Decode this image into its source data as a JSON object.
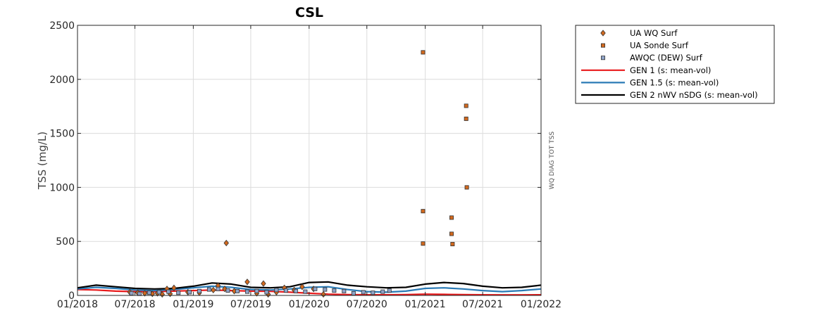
{
  "chart_data": {
    "type": "line",
    "title": "CSL",
    "ylabel": "TSS (mg/L)",
    "side_label": "WQ DIAG TOT TSS",
    "ylim": [
      0,
      2500
    ],
    "xlim": [
      "2018-01-01",
      "2022-01-01"
    ],
    "grid": true,
    "legend_position": "outside-right",
    "yticks": [
      {
        "value": 0,
        "label": "0"
      },
      {
        "value": 500,
        "label": "500"
      },
      {
        "value": 1000,
        "label": "1000"
      },
      {
        "value": 1500,
        "label": "1500"
      },
      {
        "value": 2000,
        "label": "2000"
      },
      {
        "value": 2500,
        "label": "2500"
      }
    ],
    "xticks": [
      {
        "date": "2018-01-01",
        "label": "01/2018"
      },
      {
        "date": "2018-07-01",
        "label": "07/2018"
      },
      {
        "date": "2019-01-01",
        "label": "01/2019"
      },
      {
        "date": "2019-07-01",
        "label": "07/2019"
      },
      {
        "date": "2020-01-01",
        "label": "01/2020"
      },
      {
        "date": "2020-07-01",
        "label": "07/2020"
      },
      {
        "date": "2021-01-01",
        "label": "01/2021"
      },
      {
        "date": "2021-07-01",
        "label": "07/2021"
      },
      {
        "date": "2022-01-01",
        "label": "01/2022"
      }
    ],
    "series": [
      {
        "name": "UA WQ Surf",
        "kind": "scatter",
        "marker": "diamond",
        "color": "#d2691e",
        "points": [
          {
            "x": "2018-06-15",
            "y": 30
          },
          {
            "x": "2018-07-10",
            "y": 25
          },
          {
            "x": "2018-08-01",
            "y": 20
          },
          {
            "x": "2018-08-25",
            "y": 15
          },
          {
            "x": "2018-09-10",
            "y": 20
          },
          {
            "x": "2018-09-25",
            "y": 10
          },
          {
            "x": "2018-10-10",
            "y": 60
          },
          {
            "x": "2018-10-20",
            "y": 15
          },
          {
            "x": "2018-11-01",
            "y": 70
          },
          {
            "x": "2018-12-15",
            "y": 30
          },
          {
            "x": "2019-01-20",
            "y": 25
          },
          {
            "x": "2019-03-05",
            "y": 50
          },
          {
            "x": "2019-03-20",
            "y": 90
          },
          {
            "x": "2019-04-10",
            "y": 60
          },
          {
            "x": "2019-04-15",
            "y": 485
          },
          {
            "x": "2019-05-10",
            "y": 40
          },
          {
            "x": "2019-06-20",
            "y": 125
          },
          {
            "x": "2019-07-20",
            "y": 20
          },
          {
            "x": "2019-08-10",
            "y": 110
          },
          {
            "x": "2019-08-25",
            "y": 10
          },
          {
            "x": "2019-09-20",
            "y": 30
          },
          {
            "x": "2019-10-15",
            "y": 70
          },
          {
            "x": "2019-11-15",
            "y": 50
          },
          {
            "x": "2019-12-10",
            "y": 80
          },
          {
            "x": "2020-01-15",
            "y": 60
          },
          {
            "x": "2020-02-15",
            "y": 10
          }
        ]
      },
      {
        "name": "UA Sonde Surf",
        "kind": "scatter",
        "marker": "square",
        "color": "#d2691e",
        "points": [
          {
            "x": "2020-12-25",
            "y": 2250
          },
          {
            "x": "2020-12-25",
            "y": 780
          },
          {
            "x": "2020-12-25",
            "y": 480
          },
          {
            "x": "2021-03-25",
            "y": 720
          },
          {
            "x": "2021-03-25",
            "y": 570
          },
          {
            "x": "2021-03-28",
            "y": 475
          },
          {
            "x": "2021-05-10",
            "y": 1755
          },
          {
            "x": "2021-05-10",
            "y": 1635
          },
          {
            "x": "2021-05-12",
            "y": 1000
          }
        ]
      },
      {
        "name": "AWQC (DEW) Surf",
        "kind": "scatter",
        "marker": "square",
        "color": "#8fa3c8",
        "points": [
          {
            "x": "2018-06-20",
            "y": 20
          },
          {
            "x": "2018-07-15",
            "y": 15
          },
          {
            "x": "2018-08-15",
            "y": 25
          },
          {
            "x": "2018-09-15",
            "y": 30
          },
          {
            "x": "2018-10-15",
            "y": 35
          },
          {
            "x": "2018-11-15",
            "y": 25
          },
          {
            "x": "2018-12-20",
            "y": 30
          },
          {
            "x": "2019-01-20",
            "y": 40
          },
          {
            "x": "2019-02-20",
            "y": 55
          },
          {
            "x": "2019-03-20",
            "y": 60
          },
          {
            "x": "2019-04-20",
            "y": 45
          },
          {
            "x": "2019-05-20",
            "y": 40
          },
          {
            "x": "2019-06-20",
            "y": 35
          },
          {
            "x": "2019-07-20",
            "y": 40
          },
          {
            "x": "2019-08-20",
            "y": 30
          },
          {
            "x": "2019-09-20",
            "y": 50
          },
          {
            "x": "2019-10-20",
            "y": 45
          },
          {
            "x": "2019-11-20",
            "y": 40
          },
          {
            "x": "2019-12-20",
            "y": 35
          },
          {
            "x": "2020-01-20",
            "y": 60
          },
          {
            "x": "2020-02-20",
            "y": 55
          },
          {
            "x": "2020-03-20",
            "y": 45
          },
          {
            "x": "2020-04-20",
            "y": 40
          },
          {
            "x": "2020-05-20",
            "y": 20
          },
          {
            "x": "2020-06-20",
            "y": 30
          },
          {
            "x": "2020-07-20",
            "y": 25
          },
          {
            "x": "2020-08-20",
            "y": 35
          },
          {
            "x": "2020-09-10",
            "y": 45
          }
        ]
      },
      {
        "name": "GEN 1 (s: mean-vol)",
        "kind": "line",
        "color": "#e8191b",
        "points": [
          {
            "x": "2018-01-01",
            "y": 55
          },
          {
            "x": "2018-03-01",
            "y": 50
          },
          {
            "x": "2018-05-01",
            "y": 40
          },
          {
            "x": "2018-07-01",
            "y": 35
          },
          {
            "x": "2018-09-01",
            "y": 35
          },
          {
            "x": "2018-11-01",
            "y": 40
          },
          {
            "x": "2019-01-01",
            "y": 45
          },
          {
            "x": "2019-03-01",
            "y": 50
          },
          {
            "x": "2019-05-01",
            "y": 45
          },
          {
            "x": "2019-07-01",
            "y": 40
          },
          {
            "x": "2019-09-01",
            "y": 38
          },
          {
            "x": "2019-11-01",
            "y": 30
          },
          {
            "x": "2020-01-01",
            "y": 20
          },
          {
            "x": "2020-03-01",
            "y": 12
          },
          {
            "x": "2020-05-01",
            "y": 8
          },
          {
            "x": "2020-07-01",
            "y": 6
          },
          {
            "x": "2020-09-01",
            "y": 6
          },
          {
            "x": "2020-11-01",
            "y": 8
          },
          {
            "x": "2021-01-01",
            "y": 12
          },
          {
            "x": "2021-03-01",
            "y": 10
          },
          {
            "x": "2021-05-01",
            "y": 8
          },
          {
            "x": "2021-07-01",
            "y": 6
          },
          {
            "x": "2021-09-01",
            "y": 5
          },
          {
            "x": "2021-11-01",
            "y": 5
          },
          {
            "x": "2022-01-01",
            "y": 6
          }
        ]
      },
      {
        "name": "GEN 1.5 (s: mean-vol)",
        "kind": "line",
        "color": "#2a7ab5",
        "points": [
          {
            "x": "2018-01-01",
            "y": 60
          },
          {
            "x": "2018-03-01",
            "y": 75
          },
          {
            "x": "2018-05-01",
            "y": 65
          },
          {
            "x": "2018-07-01",
            "y": 50
          },
          {
            "x": "2018-09-01",
            "y": 45
          },
          {
            "x": "2018-11-01",
            "y": 55
          },
          {
            "x": "2019-01-01",
            "y": 70
          },
          {
            "x": "2019-03-01",
            "y": 85
          },
          {
            "x": "2019-05-01",
            "y": 75
          },
          {
            "x": "2019-07-01",
            "y": 55
          },
          {
            "x": "2019-09-01",
            "y": 50
          },
          {
            "x": "2019-11-01",
            "y": 60
          },
          {
            "x": "2020-01-01",
            "y": 75
          },
          {
            "x": "2020-03-01",
            "y": 80
          },
          {
            "x": "2020-05-01",
            "y": 55
          },
          {
            "x": "2020-07-01",
            "y": 35
          },
          {
            "x": "2020-09-01",
            "y": 30
          },
          {
            "x": "2020-11-01",
            "y": 40
          },
          {
            "x": "2021-01-01",
            "y": 65
          },
          {
            "x": "2021-03-01",
            "y": 70
          },
          {
            "x": "2021-05-01",
            "y": 60
          },
          {
            "x": "2021-07-01",
            "y": 45
          },
          {
            "x": "2021-09-01",
            "y": 35
          },
          {
            "x": "2021-11-01",
            "y": 45
          },
          {
            "x": "2022-01-01",
            "y": 60
          }
        ]
      },
      {
        "name": "GEN 2 nWV nSDG (s: mean-vol)",
        "kind": "line",
        "color": "#000000",
        "points": [
          {
            "x": "2018-01-01",
            "y": 70
          },
          {
            "x": "2018-03-01",
            "y": 95
          },
          {
            "x": "2018-05-01",
            "y": 80
          },
          {
            "x": "2018-07-01",
            "y": 65
          },
          {
            "x": "2018-09-01",
            "y": 60
          },
          {
            "x": "2018-11-01",
            "y": 65
          },
          {
            "x": "2019-01-01",
            "y": 85
          },
          {
            "x": "2019-03-01",
            "y": 115
          },
          {
            "x": "2019-05-01",
            "y": 105
          },
          {
            "x": "2019-07-01",
            "y": 75
          },
          {
            "x": "2019-09-01",
            "y": 70
          },
          {
            "x": "2019-11-01",
            "y": 80
          },
          {
            "x": "2020-01-01",
            "y": 120
          },
          {
            "x": "2020-03-01",
            "y": 125
          },
          {
            "x": "2020-05-01",
            "y": 95
          },
          {
            "x": "2020-07-01",
            "y": 80
          },
          {
            "x": "2020-09-01",
            "y": 70
          },
          {
            "x": "2020-11-01",
            "y": 75
          },
          {
            "x": "2021-01-01",
            "y": 105
          },
          {
            "x": "2021-03-01",
            "y": 120
          },
          {
            "x": "2021-05-01",
            "y": 110
          },
          {
            "x": "2021-07-01",
            "y": 85
          },
          {
            "x": "2021-09-01",
            "y": 70
          },
          {
            "x": "2021-11-01",
            "y": 75
          },
          {
            "x": "2022-01-01",
            "y": 95
          }
        ]
      }
    ]
  }
}
